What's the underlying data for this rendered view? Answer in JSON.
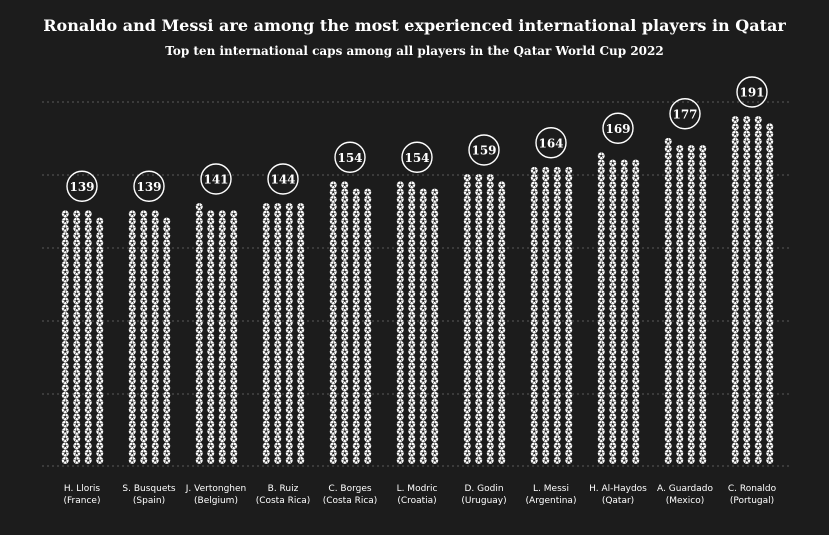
{
  "chart_data": {
    "type": "bar",
    "title": "Ronaldo and Messi are among the most experienced international players in Qatar",
    "subtitle": "Top ten international caps among all players in the Qatar World Cup 2022",
    "xlabel": "",
    "ylabel": "",
    "ylim": [
      0,
      191
    ],
    "grid": true,
    "mark": "football-icon",
    "colors": {
      "background": "#1c1c1c",
      "text": "#ffffff",
      "grid": "#5a5a5a",
      "icon": "#ffffff"
    },
    "categories": [
      {
        "name": "H. Lloris",
        "country": "(France)",
        "value": 139
      },
      {
        "name": "S. Busquets",
        "country": "(Spain)",
        "value": 139
      },
      {
        "name": "J. Vertonghen",
        "country": "(Belgium)",
        "value": 141
      },
      {
        "name": "B. Ruiz",
        "country": "(Costa Rica)",
        "value": 144
      },
      {
        "name": "C. Borges",
        "country": "(Costa Rica)",
        "value": 154
      },
      {
        "name": "L. Modric",
        "country": "(Croatia)",
        "value": 154
      },
      {
        "name": "D. Godin",
        "country": "(Uruguay)",
        "value": 159
      },
      {
        "name": "L. Messi",
        "country": "(Argentina)",
        "value": 164
      },
      {
        "name": "H. Al-Haydos",
        "country": "(Qatar)",
        "value": 169
      },
      {
        "name": "A. Guardado",
        "country": "(Mexico)",
        "value": 177
      },
      {
        "name": "C. Ronaldo",
        "country": "(Portugal)",
        "value": 191
      }
    ]
  }
}
